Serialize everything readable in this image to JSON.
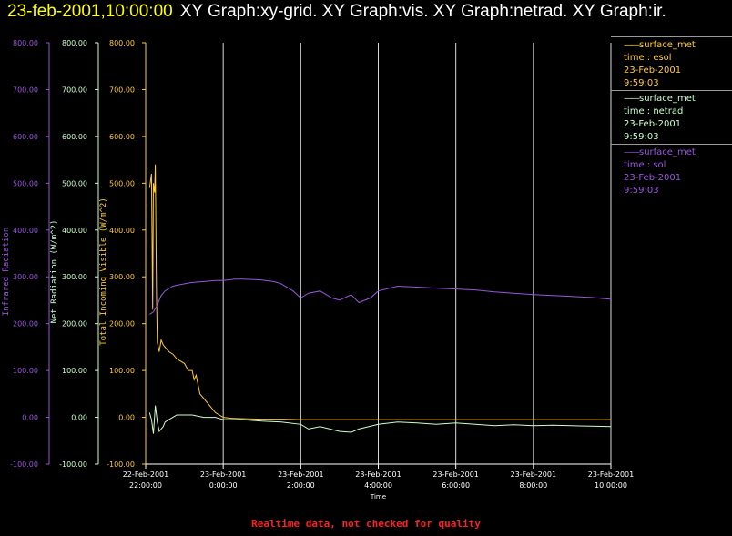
{
  "header": {
    "timestamp": "23-feb-2001,10:00:00",
    "graphs": "XY Graph:xy-grid.  XY Graph:vis.  XY Graph:netrad.  XY Graph:ir."
  },
  "footer": {
    "note": "Realtime data, not checked for quality"
  },
  "legend": [
    {
      "name": "surface_met",
      "var": "time : esol",
      "date": "23-Feb-2001",
      "time": "9:59:03",
      "color": "#ffcc33"
    },
    {
      "name": "surface_met",
      "var": "time : netrad",
      "date": "23-Feb-2001",
      "time": "9:59:03",
      "color": "#ccffcc"
    },
    {
      "name": "surface_met",
      "var": "time : sol",
      "date": "23-Feb-2001",
      "time": "9:59:03",
      "color": "#9955dd"
    }
  ],
  "chart_data": {
    "type": "line",
    "xlabel": "Time",
    "xlim": [
      -2.0,
      10.0
    ],
    "xticks": [
      {
        "value": -2,
        "date": "22-Feb-2001",
        "time": "22:00:00"
      },
      {
        "value": 0,
        "date": "23-Feb-2001",
        "time": "0:00:00"
      },
      {
        "value": 2,
        "date": "23-Feb-2001",
        "time": "2:00:00"
      },
      {
        "value": 4,
        "date": "23-Feb-2001",
        "time": "4:00:00"
      },
      {
        "value": 6,
        "date": "23-Feb-2001",
        "time": "6:00:00"
      },
      {
        "value": 8,
        "date": "23-Feb-2001",
        "time": "8:00:00"
      },
      {
        "value": 10,
        "date": "23-Feb-2001",
        "time": "10:00:00"
      }
    ],
    "grid": "vertical",
    "y_axes": [
      {
        "id": "ir",
        "label": "Infrared Radiation",
        "color": "#9955dd",
        "ylim": [
          -100,
          800
        ],
        "ticks": [
          "800.00",
          "700.00",
          "600.00",
          "500.00",
          "400.00",
          "300.00",
          "200.00",
          "100.00",
          "0.00",
          "-100.00"
        ]
      },
      {
        "id": "net",
        "label": "Net Radiation (W/m^2)",
        "color": "#ccffcc",
        "ylim": [
          -100,
          800
        ],
        "ticks": [
          "800.00",
          "700.00",
          "600.00",
          "500.00",
          "400.00",
          "300.00",
          "200.00",
          "100.00",
          "0.00",
          "-100.00"
        ]
      },
      {
        "id": "vis",
        "label": "Total Incoming Visible (W/m^2)",
        "color": "#ffcc33",
        "ylim": [
          -100,
          800
        ],
        "ticks": [
          "800.00",
          "700.00",
          "600.00",
          "500.00",
          "400.00",
          "300.00",
          "200.00",
          "100.00",
          "0.00",
          "-100.00"
        ]
      }
    ],
    "series": [
      {
        "axis": "vis",
        "color": "#ffcc33",
        "x": [
          -1.9,
          -1.85,
          -1.82,
          -1.8,
          -1.77,
          -1.75,
          -1.72,
          -1.7,
          -1.65,
          -1.6,
          -1.55,
          -1.5,
          -1.4,
          -1.3,
          -1.2,
          -1.1,
          -1.0,
          -0.9,
          -0.8,
          -0.75,
          -0.7,
          -0.6,
          -0.5,
          -0.4,
          -0.3,
          -0.2,
          -0.1,
          0.0,
          0.2,
          0.5,
          1.0,
          1.5,
          2.0,
          3.0,
          4.0,
          5.0,
          6.0,
          7.0,
          8.0,
          9.0,
          10.0
        ],
        "y": [
          490,
          520,
          230,
          500,
          480,
          540,
          260,
          160,
          140,
          165,
          155,
          150,
          140,
          135,
          125,
          120,
          115,
          100,
          100,
          80,
          90,
          50,
          40,
          30,
          20,
          10,
          5,
          0,
          -2,
          -3,
          -4,
          -4,
          -5,
          -5,
          -5,
          -5,
          -5,
          -5,
          -5,
          -5,
          -5
        ]
      },
      {
        "axis": "net",
        "color": "#ccffcc",
        "x": [
          -1.9,
          -1.85,
          -1.8,
          -1.75,
          -1.7,
          -1.65,
          -1.6,
          -1.55,
          -1.5,
          -1.4,
          -1.3,
          -1.2,
          -1.0,
          -0.8,
          -0.5,
          -0.2,
          0.0,
          0.5,
          1.0,
          1.5,
          2.0,
          2.2,
          2.5,
          3.0,
          3.3,
          3.5,
          4.0,
          4.5,
          5.0,
          5.5,
          6.0,
          6.5,
          7.0,
          7.5,
          8.0,
          8.5,
          9.0,
          9.5,
          10.0
        ],
        "y": [
          10,
          -5,
          -35,
          25,
          -10,
          -30,
          -25,
          -20,
          -10,
          -5,
          0,
          5,
          5,
          5,
          0,
          0,
          -5,
          -5,
          -8,
          -10,
          -15,
          -25,
          -20,
          -30,
          -32,
          -25,
          -15,
          -10,
          -12,
          -15,
          -12,
          -15,
          -18,
          -16,
          -18,
          -17,
          -18,
          -19,
          -20
        ]
      },
      {
        "axis": "ir",
        "color": "#9955dd",
        "x": [
          -1.9,
          -1.8,
          -1.7,
          -1.6,
          -1.5,
          -1.4,
          -1.3,
          -1.2,
          -1.0,
          -0.8,
          -0.5,
          -0.2,
          0.0,
          0.3,
          0.5,
          0.8,
          1.0,
          1.3,
          1.5,
          1.8,
          2.0,
          2.2,
          2.5,
          2.8,
          3.0,
          3.3,
          3.5,
          3.8,
          4.0,
          4.5,
          5.0,
          5.5,
          6.0,
          6.5,
          7.0,
          7.5,
          8.0,
          8.5,
          9.0,
          9.5,
          10.0
        ],
        "y": [
          220,
          225,
          240,
          260,
          270,
          275,
          280,
          282,
          285,
          288,
          290,
          292,
          292,
          295,
          295,
          294,
          293,
          290,
          285,
          270,
          255,
          265,
          270,
          255,
          250,
          262,
          245,
          255,
          270,
          280,
          278,
          276,
          274,
          272,
          268,
          265,
          262,
          260,
          258,
          256,
          252
        ]
      }
    ]
  }
}
